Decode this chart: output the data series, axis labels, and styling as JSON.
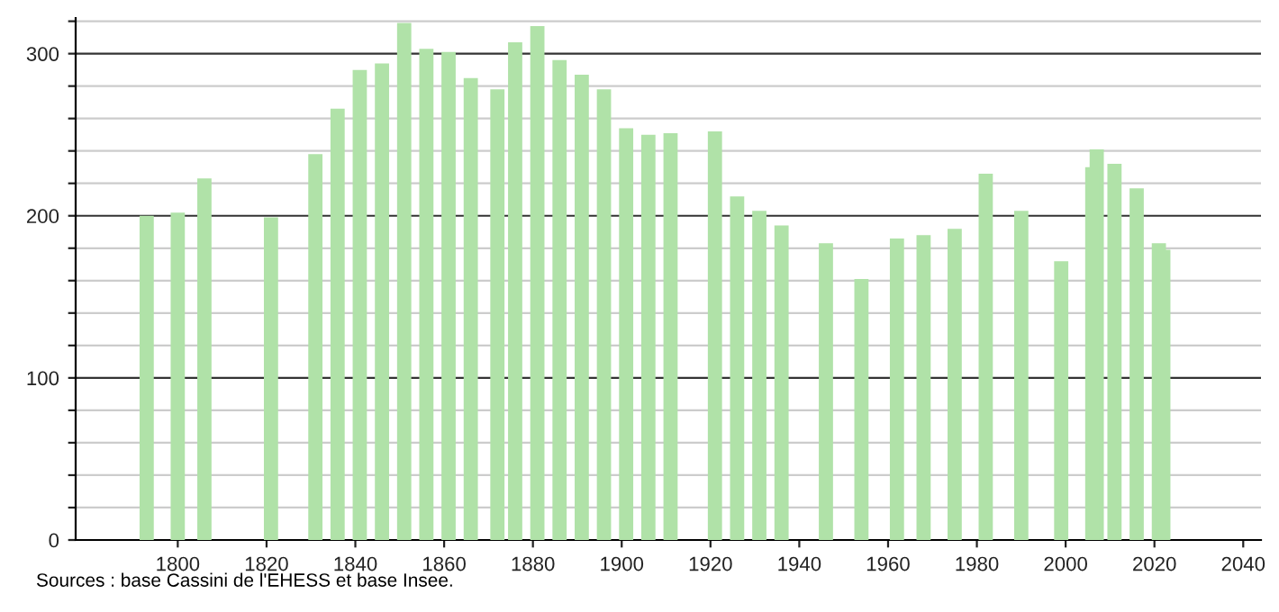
{
  "chart_data": {
    "type": "bar",
    "color": "#b0e2a8",
    "x": [
      1793,
      1800,
      1806,
      1821,
      1831,
      1836,
      1841,
      1846,
      1851,
      1856,
      1861,
      1866,
      1872,
      1876,
      1881,
      1886,
      1891,
      1896,
      1901,
      1906,
      1911,
      1921,
      1926,
      1931,
      1936,
      1946,
      1954,
      1962,
      1968,
      1975,
      1982,
      1990,
      1999,
      2006,
      2007,
      2011,
      2016,
      2021,
      2022
    ],
    "values": [
      200,
      202,
      223,
      199,
      238,
      266,
      290,
      294,
      319,
      303,
      301,
      285,
      278,
      307,
      317,
      296,
      287,
      278,
      254,
      250,
      251,
      252,
      212,
      203,
      194,
      183,
      161,
      186,
      188,
      192,
      226,
      203,
      172,
      230,
      241,
      232,
      217,
      183,
      179
    ],
    "xlim": [
      1777,
      2044
    ],
    "xticks": [
      1800,
      1820,
      1840,
      1860,
      1880,
      1900,
      1920,
      1940,
      1960,
      1980,
      2000,
      2020,
      2040
    ],
    "ylim": [
      0,
      322
    ],
    "yticks": [
      0,
      {
        "value": 20,
        "label": null
      },
      {
        "value": 40,
        "label": null
      },
      {
        "value": 60,
        "label": null
      },
      {
        "value": 80,
        "label": null
      },
      100,
      {
        "value": 120,
        "label": null
      },
      {
        "value": 140,
        "label": null
      },
      {
        "value": 160,
        "label": null
      },
      {
        "value": 180,
        "label": null
      },
      200,
      {
        "value": 220,
        "label": null
      },
      {
        "value": 240,
        "label": null
      },
      {
        "value": 260,
        "label": null
      },
      {
        "value": 280,
        "label": null
      },
      300,
      {
        "value": 320,
        "label": null
      }
    ],
    "grid": "y",
    "annotations": [
      "Sources : base Cassini de l'EHESS et base Insee."
    ]
  }
}
